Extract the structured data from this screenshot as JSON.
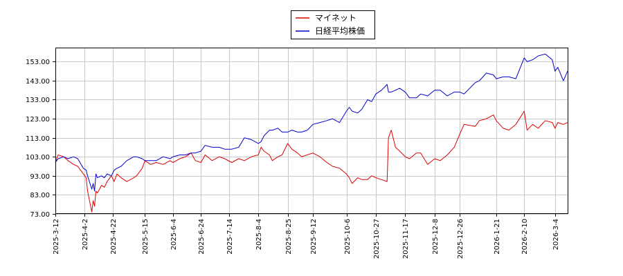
{
  "chart_data": {
    "type": "line",
    "title": "",
    "xlabel": "",
    "ylabel": "",
    "ylim": [
      73.0,
      160.0
    ],
    "y_ticks": [
      "73.00",
      "83.00",
      "93.00",
      "103.00",
      "113.00",
      "123.00",
      "133.00",
      "143.00",
      "153.00"
    ],
    "x_ticks": [
      "2025-3-12",
      "2025-4-2",
      "2025-4-22",
      "2025-5-15",
      "2025-6-4",
      "2025-6-24",
      "2025-7-14",
      "2025-8-4",
      "2025-8-25",
      "2025-9-12",
      "2025-10-6",
      "2025-10-27",
      "2025-11-17",
      "2025-12-8",
      "2025-12-26",
      "2026-1-21",
      "2026-2-10",
      "2026-3-4"
    ],
    "grid": true,
    "legend_position": "top-center",
    "series": [
      {
        "name": "マイネット",
        "color": "#dd0000",
        "points": [
          [
            "2025-3-12",
            100.0
          ],
          [
            "2025-3-14",
            104.0
          ],
          [
            "2025-3-18",
            103.0
          ],
          [
            "2025-3-21",
            101.0
          ],
          [
            "2025-3-25",
            99.0
          ],
          [
            "2025-3-28",
            98.0
          ],
          [
            "2025-4-1",
            94.0
          ],
          [
            "2025-4-3",
            92.0
          ],
          [
            "2025-4-4",
            85.0
          ],
          [
            "2025-4-7",
            74.0
          ],
          [
            "2025-4-8",
            80.0
          ],
          [
            "2025-4-9",
            77.0
          ],
          [
            "2025-4-10",
            85.0
          ],
          [
            "2025-4-11",
            84.0
          ],
          [
            "2025-4-14",
            88.0
          ],
          [
            "2025-4-16",
            87.0
          ],
          [
            "2025-4-18",
            90.0
          ],
          [
            "2025-4-21",
            93.0
          ],
          [
            "2025-4-23",
            90.0
          ],
          [
            "2025-4-25",
            94.0
          ],
          [
            "2025-4-28",
            92.0
          ],
          [
            "2025-5-2",
            90.0
          ],
          [
            "2025-5-7",
            92.0
          ],
          [
            "2025-5-9",
            93.0
          ],
          [
            "2025-5-13",
            97.0
          ],
          [
            "2025-5-15",
            101.0
          ],
          [
            "2025-5-19",
            99.0
          ],
          [
            "2025-5-23",
            100.0
          ],
          [
            "2025-5-28",
            99.0
          ],
          [
            "2025-6-2",
            101.0
          ],
          [
            "2025-6-4",
            100.0
          ],
          [
            "2025-6-9",
            102.0
          ],
          [
            "2025-6-13",
            103.0
          ],
          [
            "2025-6-17",
            105.0
          ],
          [
            "2025-6-20",
            101.0
          ],
          [
            "2025-6-24",
            100.0
          ],
          [
            "2025-6-27",
            104.0
          ],
          [
            "2025-7-2",
            101.0
          ],
          [
            "2025-7-7",
            103.0
          ],
          [
            "2025-7-11",
            102.0
          ],
          [
            "2025-7-16",
            100.0
          ],
          [
            "2025-7-21",
            102.0
          ],
          [
            "2025-7-25",
            101.0
          ],
          [
            "2025-7-30",
            103.0
          ],
          [
            "2025-8-4",
            104.0
          ],
          [
            "2025-8-6",
            108.0
          ],
          [
            "2025-8-8",
            106.0
          ],
          [
            "2025-8-12",
            104.0
          ],
          [
            "2025-8-14",
            101.0
          ],
          [
            "2025-8-18",
            103.0
          ],
          [
            "2025-8-21",
            104.0
          ],
          [
            "2025-8-25",
            110.0
          ],
          [
            "2025-8-28",
            107.0
          ],
          [
            "2025-9-1",
            105.0
          ],
          [
            "2025-9-4",
            103.0
          ],
          [
            "2025-9-8",
            104.0
          ],
          [
            "2025-9-12",
            105.0
          ],
          [
            "2025-9-17",
            103.0
          ],
          [
            "2025-9-22",
            100.0
          ],
          [
            "2025-9-26",
            98.0
          ],
          [
            "2025-10-1",
            97.0
          ],
          [
            "2025-10-6",
            94.0
          ],
          [
            "2025-10-8",
            92.0
          ],
          [
            "2025-10-10",
            89.0
          ],
          [
            "2025-10-14",
            92.0
          ],
          [
            "2025-10-17",
            91.0
          ],
          [
            "2025-10-21",
            91.0
          ],
          [
            "2025-10-24",
            93.0
          ],
          [
            "2025-10-27",
            92.0
          ],
          [
            "2025-10-31",
            91.0
          ],
          [
            "2025-11-4",
            90.0
          ],
          [
            "2025-11-5",
            113.0
          ],
          [
            "2025-11-7",
            117.0
          ],
          [
            "2025-11-10",
            108.0
          ],
          [
            "2025-11-13",
            106.0
          ],
          [
            "2025-11-17",
            103.0
          ],
          [
            "2025-11-20",
            102.0
          ],
          [
            "2025-11-25",
            105.0
          ],
          [
            "2025-11-28",
            105.0
          ],
          [
            "2025-12-3",
            99.0
          ],
          [
            "2025-12-8",
            102.0
          ],
          [
            "2025-12-12",
            101.0
          ],
          [
            "2025-12-17",
            104.0
          ],
          [
            "2025-12-22",
            108.0
          ],
          [
            "2025-12-26",
            115.0
          ],
          [
            "2025-12-29",
            120.0
          ],
          [
            "2026-1-6",
            119.0
          ],
          [
            "2026-1-9",
            122.0
          ],
          [
            "2026-1-14",
            123.0
          ],
          [
            "2026-1-19",
            125.0
          ],
          [
            "2026-1-21",
            122.0
          ],
          [
            "2026-1-26",
            118.0
          ],
          [
            "2026-1-30",
            117.0
          ],
          [
            "2026-2-4",
            120.0
          ],
          [
            "2026-2-10",
            127.0
          ],
          [
            "2026-2-12",
            117.0
          ],
          [
            "2026-2-16",
            120.0
          ],
          [
            "2026-2-20",
            118.0
          ],
          [
            "2026-2-25",
            122.0
          ],
          [
            "2026-3-2",
            121.0
          ],
          [
            "2026-3-4",
            118.0
          ],
          [
            "2026-3-6",
            121.0
          ],
          [
            "2026-3-10",
            120.0
          ],
          [
            "2026-3-13",
            121.0
          ]
        ]
      },
      {
        "name": "日経平均株価",
        "color": "#0000cc",
        "points": [
          [
            "2025-3-12",
            100.0
          ],
          [
            "2025-3-14",
            102.0
          ],
          [
            "2025-3-18",
            103.0
          ],
          [
            "2025-3-21",
            102.0
          ],
          [
            "2025-3-25",
            103.0
          ],
          [
            "2025-3-28",
            102.0
          ],
          [
            "2025-4-1",
            97.0
          ],
          [
            "2025-4-3",
            96.0
          ],
          [
            "2025-4-4",
            93.0
          ],
          [
            "2025-4-7",
            86.0
          ],
          [
            "2025-4-8",
            89.0
          ],
          [
            "2025-4-9",
            85.0
          ],
          [
            "2025-4-10",
            94.0
          ],
          [
            "2025-4-11",
            92.0
          ],
          [
            "2025-4-14",
            93.0
          ],
          [
            "2025-4-16",
            92.0
          ],
          [
            "2025-4-18",
            94.0
          ],
          [
            "2025-4-21",
            93.0
          ],
          [
            "2025-4-23",
            96.0
          ],
          [
            "2025-4-25",
            97.0
          ],
          [
            "2025-4-28",
            98.0
          ],
          [
            "2025-5-2",
            101.0
          ],
          [
            "2025-5-7",
            103.0
          ],
          [
            "2025-5-9",
            103.0
          ],
          [
            "2025-5-13",
            102.0
          ],
          [
            "2025-5-15",
            101.0
          ],
          [
            "2025-5-19",
            101.0
          ],
          [
            "2025-5-23",
            101.0
          ],
          [
            "2025-5-28",
            103.0
          ],
          [
            "2025-6-2",
            102.0
          ],
          [
            "2025-6-4",
            103.0
          ],
          [
            "2025-6-9",
            104.0
          ],
          [
            "2025-6-13",
            104.0
          ],
          [
            "2025-6-17",
            105.0
          ],
          [
            "2025-6-20",
            105.0
          ],
          [
            "2025-6-24",
            106.0
          ],
          [
            "2025-6-27",
            109.0
          ],
          [
            "2025-7-2",
            108.0
          ],
          [
            "2025-7-7",
            108.0
          ],
          [
            "2025-7-11",
            107.0
          ],
          [
            "2025-7-16",
            107.0
          ],
          [
            "2025-7-21",
            108.0
          ],
          [
            "2025-7-25",
            113.0
          ],
          [
            "2025-7-30",
            112.0
          ],
          [
            "2025-8-4",
            110.0
          ],
          [
            "2025-8-6",
            111.0
          ],
          [
            "2025-8-8",
            114.0
          ],
          [
            "2025-8-12",
            117.0
          ],
          [
            "2025-8-14",
            117.0
          ],
          [
            "2025-8-18",
            118.0
          ],
          [
            "2025-8-21",
            116.0
          ],
          [
            "2025-8-25",
            116.0
          ],
          [
            "2025-8-28",
            117.0
          ],
          [
            "2025-9-1",
            116.0
          ],
          [
            "2025-9-4",
            116.0
          ],
          [
            "2025-9-8",
            117.0
          ],
          [
            "2025-9-12",
            120.0
          ],
          [
            "2025-9-17",
            121.0
          ],
          [
            "2025-9-22",
            122.0
          ],
          [
            "2025-9-26",
            123.0
          ],
          [
            "2025-10-1",
            121.0
          ],
          [
            "2025-10-6",
            127.0
          ],
          [
            "2025-10-8",
            129.0
          ],
          [
            "2025-10-10",
            127.0
          ],
          [
            "2025-10-14",
            126.0
          ],
          [
            "2025-10-17",
            128.0
          ],
          [
            "2025-10-21",
            133.0
          ],
          [
            "2025-10-24",
            132.0
          ],
          [
            "2025-10-27",
            136.0
          ],
          [
            "2025-10-31",
            138.0
          ],
          [
            "2025-11-4",
            141.0
          ],
          [
            "2025-11-5",
            137.0
          ],
          [
            "2025-11-7",
            137.0
          ],
          [
            "2025-11-10",
            138.0
          ],
          [
            "2025-11-13",
            139.0
          ],
          [
            "2025-11-17",
            137.0
          ],
          [
            "2025-11-20",
            134.0
          ],
          [
            "2025-11-25",
            134.0
          ],
          [
            "2025-11-28",
            136.0
          ],
          [
            "2025-12-3",
            135.0
          ],
          [
            "2025-12-8",
            138.0
          ],
          [
            "2025-12-12",
            138.0
          ],
          [
            "2025-12-17",
            135.0
          ],
          [
            "2025-12-22",
            137.0
          ],
          [
            "2025-12-26",
            137.0
          ],
          [
            "2025-12-29",
            136.0
          ],
          [
            "2026-1-6",
            142.0
          ],
          [
            "2026-1-9",
            143.0
          ],
          [
            "2026-1-14",
            147.0
          ],
          [
            "2026-1-19",
            146.0
          ],
          [
            "2026-1-21",
            144.0
          ],
          [
            "2026-1-26",
            145.0
          ],
          [
            "2026-1-30",
            145.0
          ],
          [
            "2026-2-4",
            144.0
          ],
          [
            "2026-2-10",
            155.0
          ],
          [
            "2026-2-12",
            153.0
          ],
          [
            "2026-2-16",
            154.0
          ],
          [
            "2026-2-20",
            156.0
          ],
          [
            "2026-2-25",
            157.0
          ],
          [
            "2026-3-2",
            154.0
          ],
          [
            "2026-3-4",
            148.0
          ],
          [
            "2026-3-6",
            150.0
          ],
          [
            "2026-3-10",
            143.0
          ],
          [
            "2026-3-13",
            148.0
          ]
        ]
      }
    ]
  }
}
